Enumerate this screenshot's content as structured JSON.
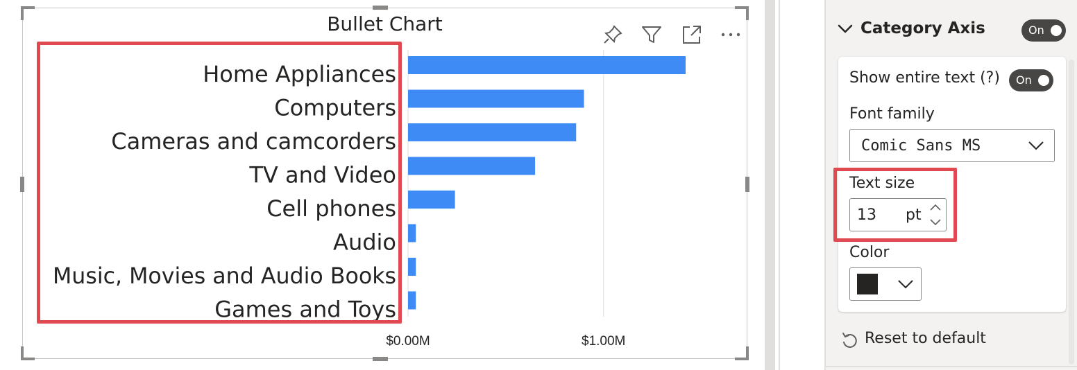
{
  "visual": {
    "title": "Bullet Chart",
    "header_icons": [
      "pin-icon",
      "filter-icon",
      "focus-mode-icon",
      "more-options-icon"
    ]
  },
  "chart_data": {
    "type": "bar",
    "orientation": "horizontal",
    "title": "Bullet Chart",
    "categories": [
      "Home Appliances",
      "Computers",
      "Cameras and camcorders",
      "TV and Video",
      "Cell phones",
      "Audio",
      "Music, Movies and Audio Books",
      "Games and Toys"
    ],
    "values": [
      1.42,
      0.9,
      0.86,
      0.65,
      0.24,
      0.04,
      0.04,
      0.04
    ],
    "value_unit": "$M",
    "xlim": [
      0,
      1.42
    ],
    "x_ticks": [
      0,
      1.0
    ],
    "x_tick_labels": [
      "$0.00M",
      "$1.00M"
    ],
    "grid": true,
    "bar_color": "#3f8bf5"
  },
  "format_pane": {
    "section_title": "Category Axis",
    "section_toggle": "On",
    "show_entire_text_label": "Show entire text (?)",
    "show_entire_text_toggle": "On",
    "font_family_label": "Font family",
    "font_family_value": "Comic Sans MS",
    "text_size_label": "Text size",
    "text_size_value": "13",
    "text_size_unit": "pt",
    "color_label": "Color",
    "color_value": "#252423",
    "reset_label": "Reset to default"
  },
  "highlight_color": "#e0494f"
}
